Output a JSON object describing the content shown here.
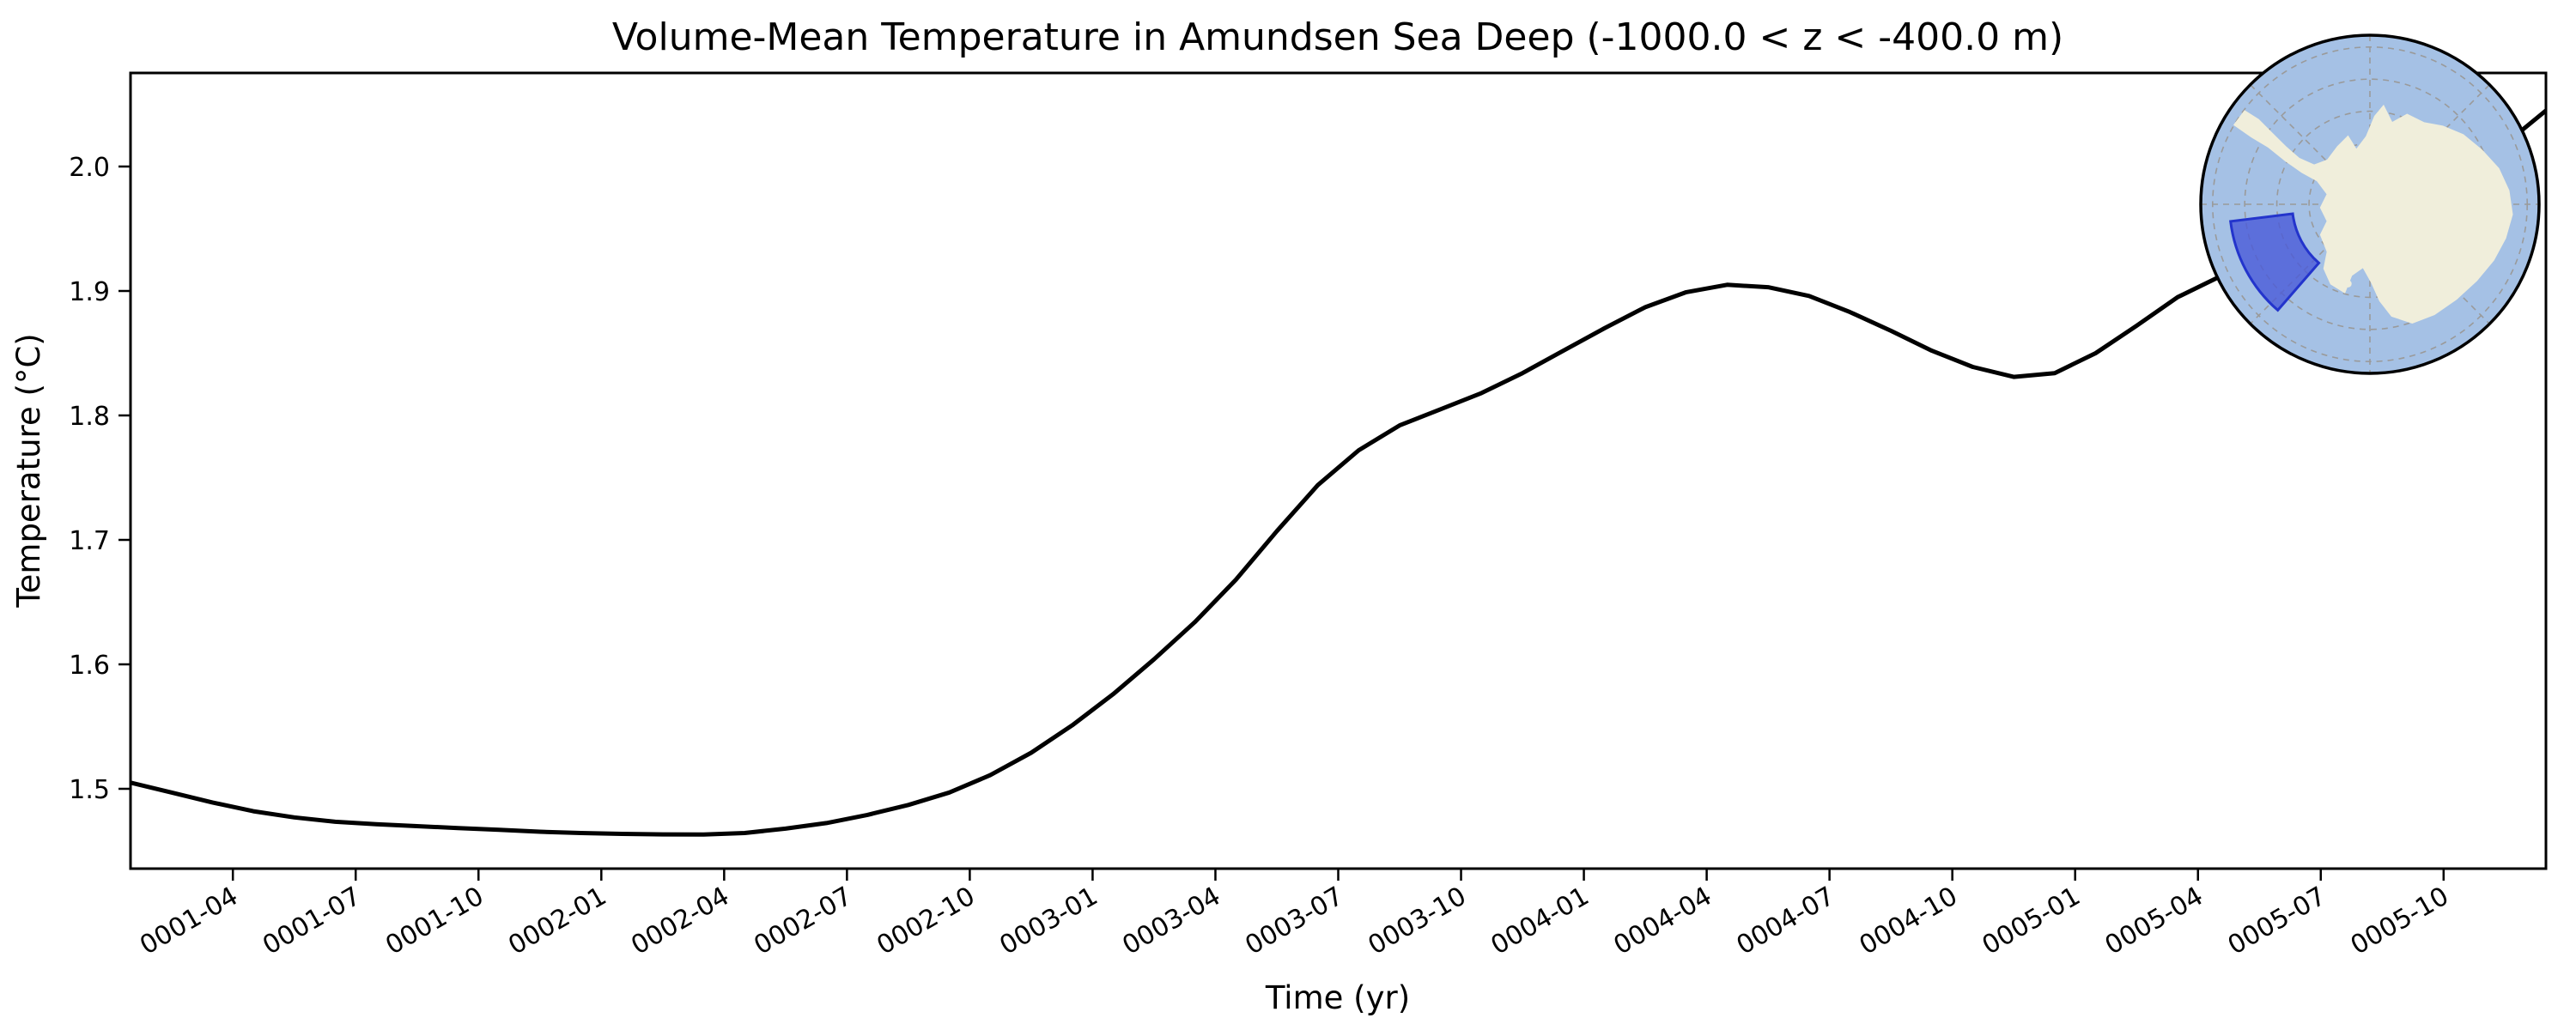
{
  "figure": {
    "background": "#ffffff"
  },
  "chart_data": {
    "type": "line",
    "title": "Volume-Mean Temperature in Amundsen Sea Deep (-1000.0 < z < -400.0 m)",
    "xlabel": "Time (yr)",
    "ylabel": "Temperature (°C)",
    "grid": false,
    "legend": null,
    "line_color": "#000000",
    "line_width": 5,
    "ylim": [
      1.437,
      2.074
    ],
    "y_tick_values": [
      1.5,
      1.6,
      1.7,
      1.8,
      1.9,
      2.0
    ],
    "y_tick_labels": [
      "1.5",
      "1.6",
      "1.7",
      "1.8",
      "1.9",
      "2.0"
    ],
    "x_tick_labels": [
      "0001-04",
      "0001-07",
      "0001-10",
      "0002-01",
      "0002-04",
      "0002-07",
      "0002-10",
      "0003-01",
      "0003-04",
      "0003-07",
      "0003-10",
      "0004-01",
      "0004-04",
      "0004-07",
      "0004-10",
      "0005-01",
      "0005-04",
      "0005-07",
      "0005-10"
    ],
    "series": [
      {
        "name": "volume-mean-temperature",
        "x": [
          "0001-01",
          "0001-02",
          "0001-03",
          "0001-04",
          "0001-05",
          "0001-06",
          "0001-07",
          "0001-08",
          "0001-09",
          "0001-10",
          "0001-11",
          "0001-12",
          "0002-01",
          "0002-02",
          "0002-03",
          "0002-04",
          "0002-05",
          "0002-06",
          "0002-07",
          "0002-08",
          "0002-09",
          "0002-10",
          "0002-11",
          "0002-12",
          "0003-01",
          "0003-02",
          "0003-03",
          "0003-04",
          "0003-05",
          "0003-06",
          "0003-07",
          "0003-08",
          "0003-09",
          "0003-10",
          "0003-11",
          "0003-12",
          "0004-01",
          "0004-02",
          "0004-03",
          "0004-04",
          "0004-05",
          "0004-06",
          "0004-07",
          "0004-08",
          "0004-09",
          "0004-10",
          "0004-11",
          "0004-12",
          "0005-01",
          "0005-02",
          "0005-03",
          "0005-04",
          "0005-05",
          "0005-06",
          "0005-07",
          "0005-08",
          "0005-09",
          "0005-10",
          "0005-11",
          "0005-12"
        ],
        "values": [
          1.505,
          1.497,
          1.489,
          1.482,
          1.477,
          1.4735,
          1.4715,
          1.47,
          1.4685,
          1.467,
          1.4655,
          1.4645,
          1.4638,
          1.4634,
          1.4633,
          1.4645,
          1.468,
          1.4725,
          1.479,
          1.487,
          1.497,
          1.511,
          1.529,
          1.551,
          1.576,
          1.604,
          1.634,
          1.668,
          1.707,
          1.744,
          1.772,
          1.792,
          1.805,
          1.818,
          1.834,
          1.852,
          1.87,
          1.887,
          1.899,
          1.905,
          1.903,
          1.896,
          1.883,
          1.868,
          1.852,
          1.839,
          1.831,
          1.834,
          1.85,
          1.872,
          1.895,
          1.911,
          1.917,
          1.922,
          1.933,
          1.949,
          1.969,
          1.992,
          2.018,
          2.045
        ]
      }
    ],
    "inset_map": {
      "name": "antarctica-south-polar-inset",
      "highlight_region": "Amundsen Sea sector",
      "ocean_color": "#a5c1e5",
      "land_color": "#f0eedb",
      "highlight_fill": "#4a5ad8",
      "highlight_stroke": "#2334cc",
      "graticule_color": "#9a9a9a",
      "border_color": "#000000"
    }
  }
}
